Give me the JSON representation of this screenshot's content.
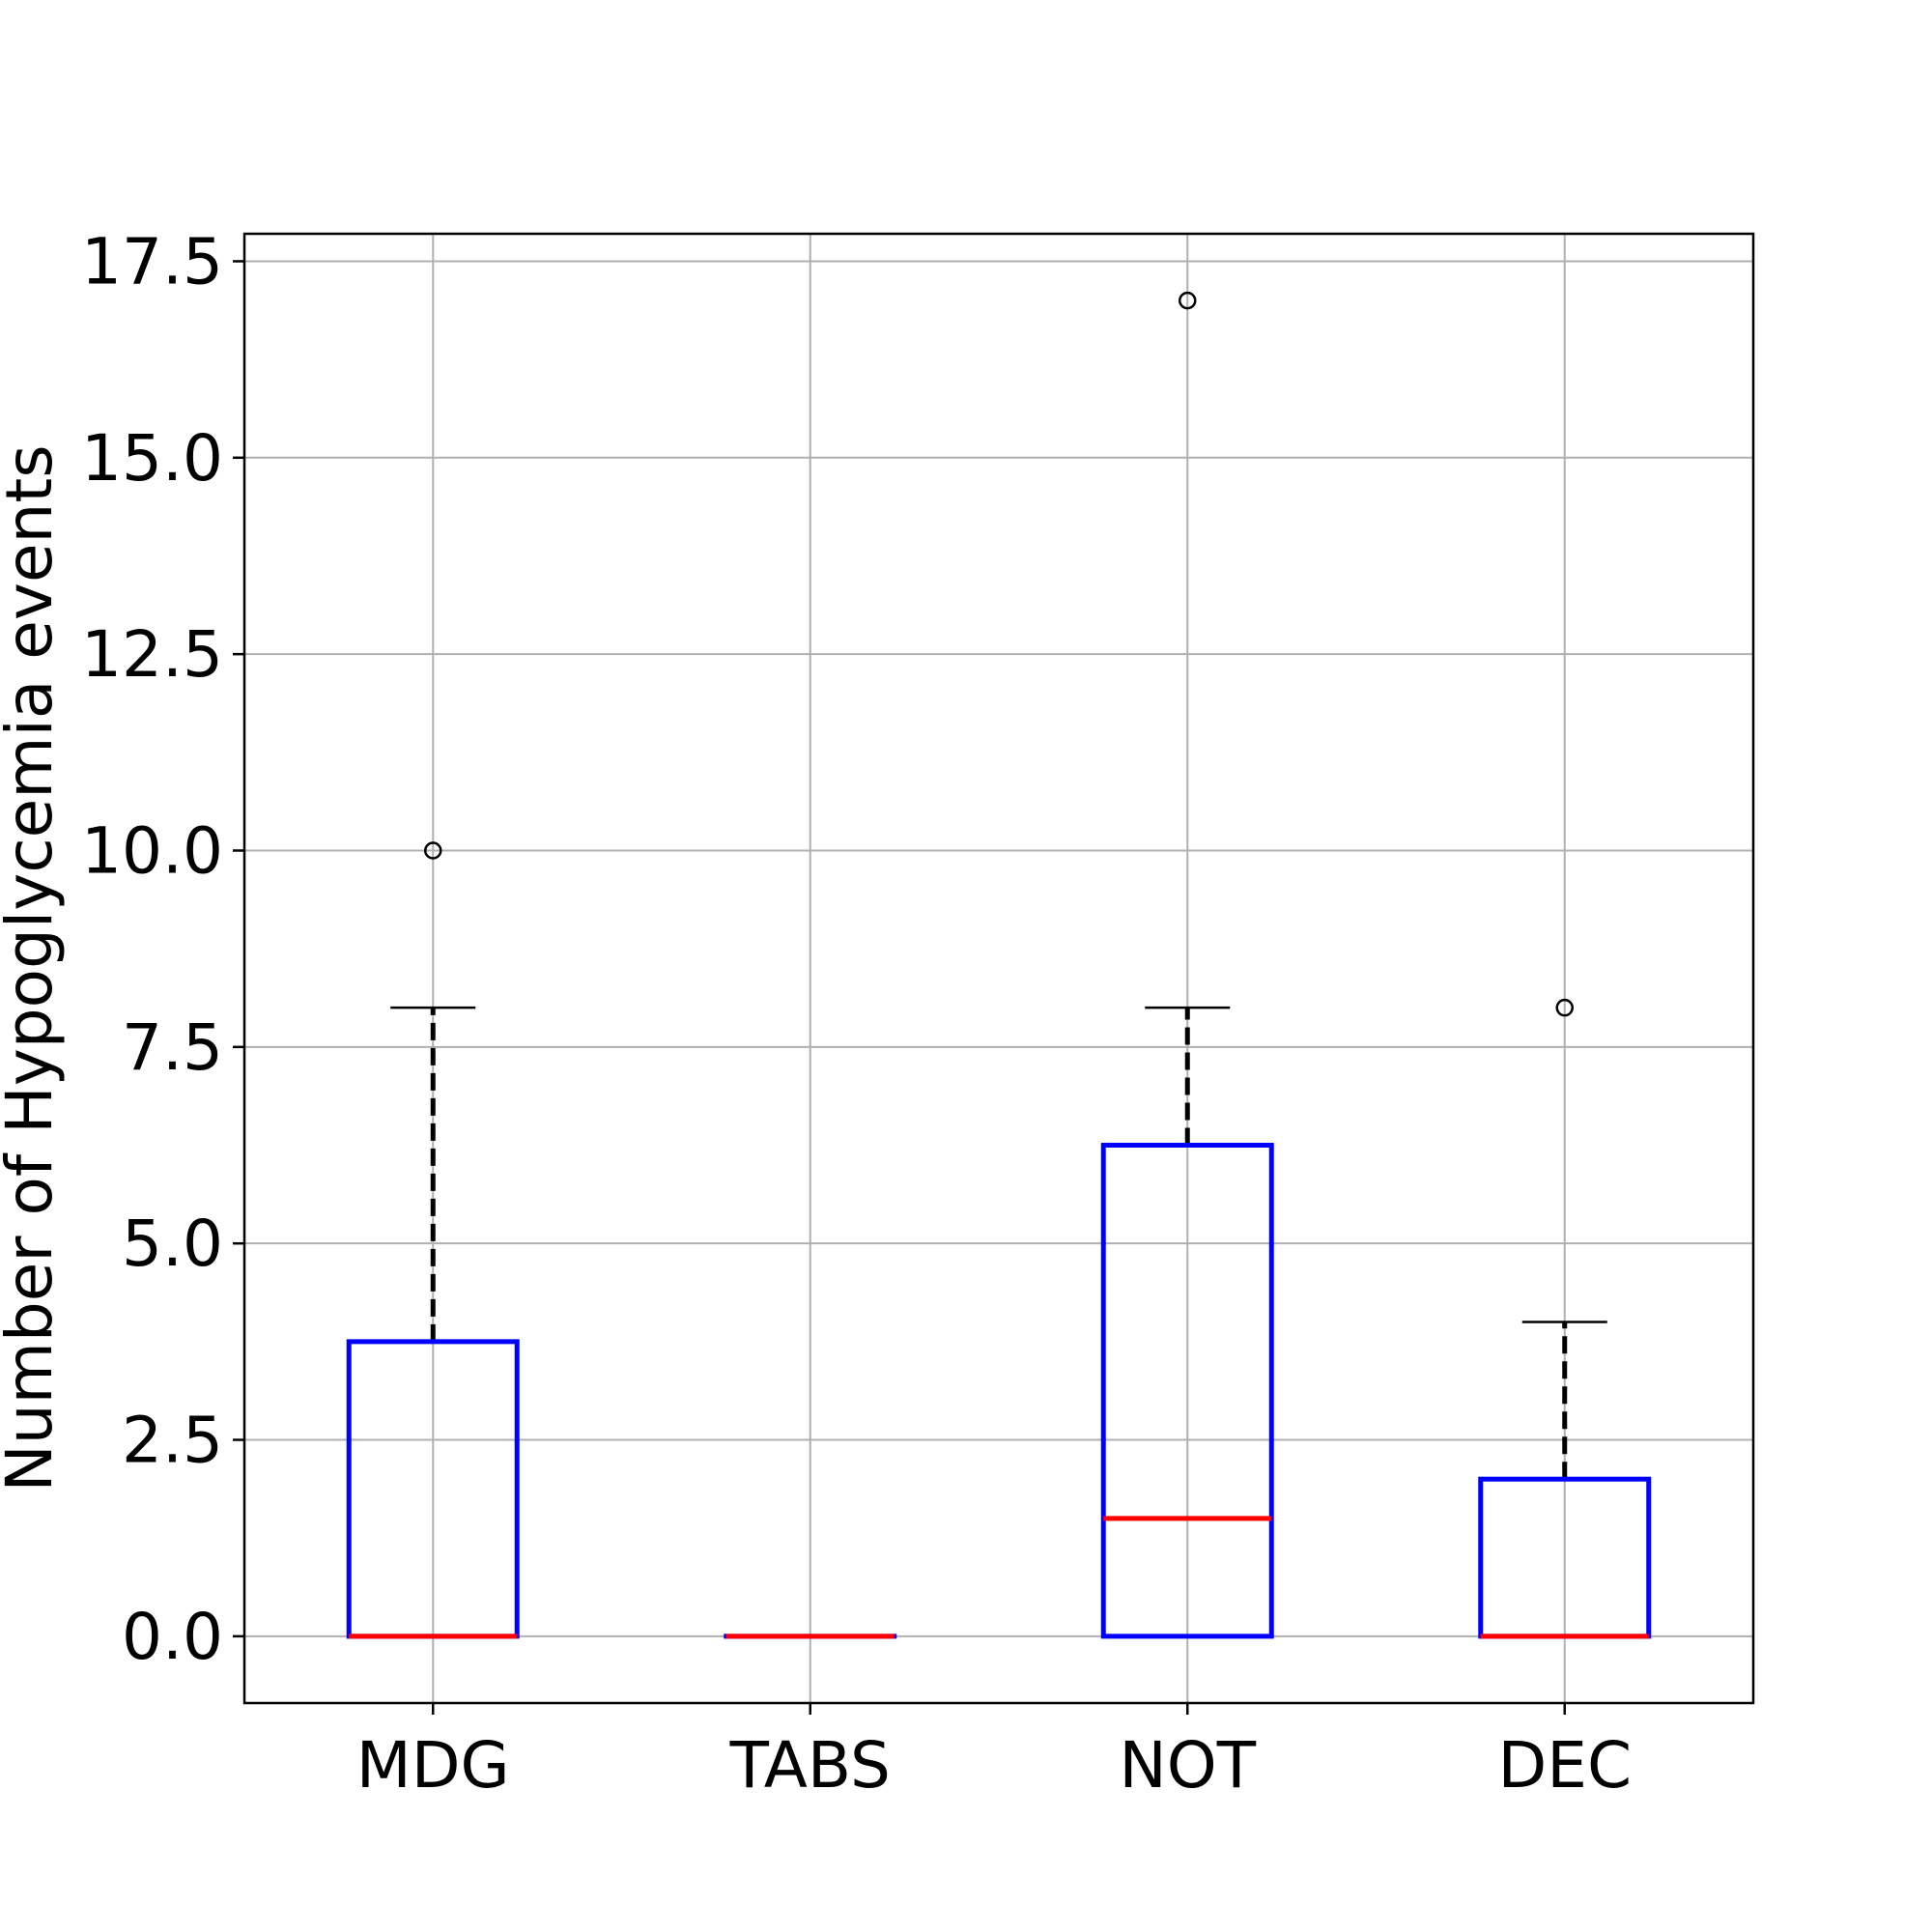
{
  "chart_data": {
    "type": "boxplot",
    "title": "",
    "xlabel": "",
    "ylabel": "Number of Hypoglycemia events",
    "ylim": [
      -0.85,
      17.85
    ],
    "yticks": [
      0.0,
      2.5,
      5.0,
      7.5,
      10.0,
      12.5,
      15.0,
      17.5
    ],
    "ytick_labels": [
      "0.0",
      "2.5",
      "5.0",
      "7.5",
      "10.0",
      "12.5",
      "15.0",
      "17.5"
    ],
    "grid": true,
    "categories": [
      "MDG",
      "TABS",
      "NOT",
      "DEC"
    ],
    "boxes": [
      {
        "category": "MDG",
        "whisker_low": 0,
        "q1": 0,
        "median": 0,
        "q3": 3.75,
        "whisker_high": 8,
        "outliers": [
          10
        ]
      },
      {
        "category": "TABS",
        "whisker_low": 0,
        "q1": 0,
        "median": 0,
        "q3": 0,
        "whisker_high": 0,
        "outliers": []
      },
      {
        "category": "NOT",
        "whisker_low": 0,
        "q1": 0,
        "median": 1.5,
        "q3": 6.25,
        "whisker_high": 8,
        "outliers": [
          17
        ]
      },
      {
        "category": "DEC",
        "whisker_low": 0,
        "q1": 0,
        "median": 0,
        "q3": 2,
        "whisker_high": 4,
        "outliers": [
          8
        ]
      }
    ],
    "colors": {
      "box": "#0000ff",
      "median": "#ff0000",
      "whisker": "#000000",
      "cap": "#000000",
      "outlier": "#000000",
      "grid": "#b0b0b0"
    }
  }
}
